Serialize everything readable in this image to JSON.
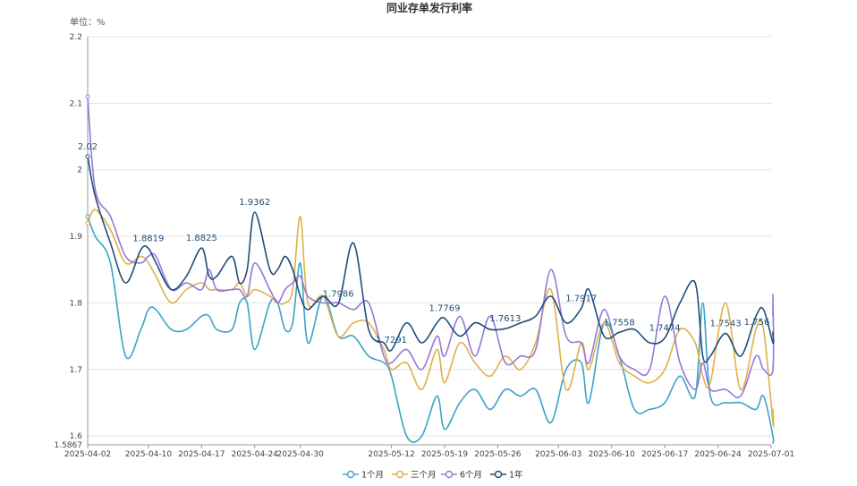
{
  "chart_data": {
    "type": "line",
    "title": "同业存单发行利率",
    "unit_label": "单位：%",
    "ylim": [
      1.5867,
      2.2
    ],
    "y_ticks": [
      1.5867,
      1.6,
      1.7,
      1.8,
      1.9,
      2,
      2.1,
      2.2
    ],
    "y_tick_labels": [
      "1.5867",
      "1.6",
      "1.7",
      "1.8",
      "1.9",
      "2",
      "2.1",
      "2.2"
    ],
    "x_range": [
      "2025-04-02",
      "2025-07-01"
    ],
    "x_ticks": [
      "2025-04-02",
      "2025-04-10",
      "2025-04-17",
      "2025-04-24",
      "2025-04-30",
      "2025-05-12",
      "2025-05-19",
      "2025-05-26",
      "2025-06-03",
      "2025-06-10",
      "2025-06-17",
      "2025-06-24",
      "2025-07-01"
    ],
    "grid": true,
    "legend_position": "bottom-center",
    "series": [
      {
        "name": "1个月",
        "color": "#3ba3c8",
        "values": [
          [
            "2025-04-02",
            1.93
          ],
          [
            "2025-04-03",
            1.9
          ],
          [
            "2025-04-05",
            1.86
          ],
          [
            "2025-04-07",
            1.72
          ],
          [
            "2025-04-09",
            1.76
          ],
          [
            "2025-04-10",
            1.79
          ],
          [
            "2025-04-11",
            1.79
          ],
          [
            "2025-04-13",
            1.76
          ],
          [
            "2025-04-15",
            1.76
          ],
          [
            "2025-04-17",
            1.78
          ],
          [
            "2025-04-18",
            1.78
          ],
          [
            "2025-04-19",
            1.76
          ],
          [
            "2025-04-21",
            1.76
          ],
          [
            "2025-04-22",
            1.8
          ],
          [
            "2025-04-23",
            1.8
          ],
          [
            "2025-04-24",
            1.73
          ],
          [
            "2025-04-26",
            1.8
          ],
          [
            "2025-04-27",
            1.8
          ],
          [
            "2025-04-28",
            1.76
          ],
          [
            "2025-04-29",
            1.77
          ],
          [
            "2025-04-30",
            1.86
          ],
          [
            "2025-05-01",
            1.74
          ],
          [
            "2025-05-03",
            1.81
          ],
          [
            "2025-05-05",
            1.75
          ],
          [
            "2025-05-07",
            1.75
          ],
          [
            "2025-05-09",
            1.72
          ],
          [
            "2025-05-11",
            1.71
          ],
          [
            "2025-05-12",
            1.69
          ],
          [
            "2025-05-14",
            1.6
          ],
          [
            "2025-05-16",
            1.6
          ],
          [
            "2025-05-18",
            1.66
          ],
          [
            "2025-05-19",
            1.61
          ],
          [
            "2025-05-21",
            1.65
          ],
          [
            "2025-05-23",
            1.67
          ],
          [
            "2025-05-25",
            1.64
          ],
          [
            "2025-05-27",
            1.67
          ],
          [
            "2025-05-29",
            1.66
          ],
          [
            "2025-05-31",
            1.67
          ],
          [
            "2025-06-02",
            1.62
          ],
          [
            "2025-06-04",
            1.7
          ],
          [
            "2025-06-06",
            1.71
          ],
          [
            "2025-06-07",
            1.65
          ],
          [
            "2025-06-09",
            1.77
          ],
          [
            "2025-06-11",
            1.72
          ],
          [
            "2025-06-13",
            1.64
          ],
          [
            "2025-06-15",
            1.64
          ],
          [
            "2025-06-17",
            1.65
          ],
          [
            "2025-06-19",
            1.69
          ],
          [
            "2025-06-21",
            1.66
          ],
          [
            "2025-06-22",
            1.8
          ],
          [
            "2025-06-23",
            1.66
          ],
          [
            "2025-06-25",
            1.65
          ],
          [
            "2025-06-27",
            1.65
          ],
          [
            "2025-06-29",
            1.64
          ],
          [
            "2025-06-30",
            1.66
          ],
          [
            "2025-07-02",
            1.6
          ],
          [
            "2025-07-03",
            1.59
          ],
          [
            "2025-07-04",
            1.59
          ]
        ]
      },
      {
        "name": "三个月",
        "color": "#e0b04a",
        "values": [
          [
            "2025-04-02",
            1.92
          ],
          [
            "2025-04-03",
            1.94
          ],
          [
            "2025-04-05",
            1.91
          ],
          [
            "2025-04-07",
            1.86
          ],
          [
            "2025-04-09",
            1.87
          ],
          [
            "2025-04-10",
            1.86
          ],
          [
            "2025-04-11",
            1.84
          ],
          [
            "2025-04-13",
            1.8
          ],
          [
            "2025-04-15",
            1.82
          ],
          [
            "2025-04-17",
            1.83
          ],
          [
            "2025-04-18",
            1.82
          ],
          [
            "2025-04-19",
            1.82
          ],
          [
            "2025-04-21",
            1.82
          ],
          [
            "2025-04-22",
            1.83
          ],
          [
            "2025-04-23",
            1.81
          ],
          [
            "2025-04-24",
            1.82
          ],
          [
            "2025-04-26",
            1.81
          ],
          [
            "2025-04-27",
            1.8
          ],
          [
            "2025-04-28",
            1.8
          ],
          [
            "2025-04-29",
            1.82
          ],
          [
            "2025-04-30",
            1.93
          ],
          [
            "2025-05-01",
            1.8
          ],
          [
            "2025-05-03",
            1.81
          ],
          [
            "2025-05-05",
            1.75
          ],
          [
            "2025-05-07",
            1.77
          ],
          [
            "2025-05-09",
            1.77
          ],
          [
            "2025-05-11",
            1.73
          ],
          [
            "2025-05-12",
            1.7
          ],
          [
            "2025-05-14",
            1.71
          ],
          [
            "2025-05-16",
            1.67
          ],
          [
            "2025-05-18",
            1.73
          ],
          [
            "2025-05-19",
            1.68
          ],
          [
            "2025-05-21",
            1.74
          ],
          [
            "2025-05-23",
            1.71
          ],
          [
            "2025-05-25",
            1.69
          ],
          [
            "2025-05-27",
            1.72
          ],
          [
            "2025-05-29",
            1.7
          ],
          [
            "2025-05-31",
            1.74
          ],
          [
            "2025-06-02",
            1.82
          ],
          [
            "2025-06-04",
            1.67
          ],
          [
            "2025-06-06",
            1.74
          ],
          [
            "2025-06-07",
            1.7
          ],
          [
            "2025-06-09",
            1.77
          ],
          [
            "2025-06-11",
            1.71
          ],
          [
            "2025-06-13",
            1.69
          ],
          [
            "2025-06-15",
            1.68
          ],
          [
            "2025-06-17",
            1.7
          ],
          [
            "2025-06-19",
            1.76
          ],
          [
            "2025-06-21",
            1.74
          ],
          [
            "2025-06-22",
            1.69
          ],
          [
            "2025-06-23",
            1.68
          ],
          [
            "2025-06-25",
            1.8
          ],
          [
            "2025-06-27",
            1.67
          ],
          [
            "2025-06-29",
            1.76
          ],
          [
            "2025-06-30",
            1.76
          ],
          [
            "2025-07-02",
            1.62
          ],
          [
            "2025-07-03",
            1.64
          ],
          [
            "2025-07-04",
            1.63
          ]
        ]
      },
      {
        "name": "6个月",
        "color": "#9678d8",
        "values": [
          [
            "2025-04-02",
            2.11
          ],
          [
            "2025-04-03",
            1.97
          ],
          [
            "2025-04-05",
            1.93
          ],
          [
            "2025-04-07",
            1.87
          ],
          [
            "2025-04-09",
            1.86
          ],
          [
            "2025-04-10",
            1.87
          ],
          [
            "2025-04-11",
            1.87
          ],
          [
            "2025-04-13",
            1.82
          ],
          [
            "2025-04-15",
            1.83
          ],
          [
            "2025-04-17",
            1.82
          ],
          [
            "2025-04-18",
            1.85
          ],
          [
            "2025-04-19",
            1.82
          ],
          [
            "2025-04-21",
            1.82
          ],
          [
            "2025-04-22",
            1.82
          ],
          [
            "2025-04-23",
            1.81
          ],
          [
            "2025-04-24",
            1.86
          ],
          [
            "2025-04-26",
            1.82
          ],
          [
            "2025-04-27",
            1.8
          ],
          [
            "2025-04-28",
            1.82
          ],
          [
            "2025-04-29",
            1.83
          ],
          [
            "2025-04-30",
            1.84
          ],
          [
            "2025-05-01",
            1.81
          ],
          [
            "2025-05-03",
            1.8
          ],
          [
            "2025-05-05",
            1.8
          ],
          [
            "2025-05-07",
            1.79
          ],
          [
            "2025-05-09",
            1.8
          ],
          [
            "2025-05-11",
            1.72
          ],
          [
            "2025-05-12",
            1.71
          ],
          [
            "2025-05-14",
            1.73
          ],
          [
            "2025-05-16",
            1.7
          ],
          [
            "2025-05-18",
            1.75
          ],
          [
            "2025-05-19",
            1.72
          ],
          [
            "2025-05-21",
            1.78
          ],
          [
            "2025-05-23",
            1.72
          ],
          [
            "2025-05-25",
            1.78
          ],
          [
            "2025-05-27",
            1.71
          ],
          [
            "2025-05-29",
            1.72
          ],
          [
            "2025-05-31",
            1.73
          ],
          [
            "2025-06-02",
            1.85
          ],
          [
            "2025-06-04",
            1.75
          ],
          [
            "2025-06-06",
            1.74
          ],
          [
            "2025-06-07",
            1.71
          ],
          [
            "2025-06-09",
            1.79
          ],
          [
            "2025-06-11",
            1.72
          ],
          [
            "2025-06-13",
            1.7
          ],
          [
            "2025-06-15",
            1.7
          ],
          [
            "2025-06-17",
            1.81
          ],
          [
            "2025-06-19",
            1.71
          ],
          [
            "2025-06-21",
            1.67
          ],
          [
            "2025-06-22",
            1.71
          ],
          [
            "2025-06-23",
            1.67
          ],
          [
            "2025-06-25",
            1.67
          ],
          [
            "2025-06-27",
            1.66
          ],
          [
            "2025-06-29",
            1.72
          ],
          [
            "2025-06-30",
            1.7
          ],
          [
            "2025-07-02",
            1.7
          ],
          [
            "2025-07-03",
            1.81
          ],
          [
            "2025-07-04",
            1.78
          ]
        ]
      },
      {
        "name": "1年",
        "color": "#1f4e79",
        "values": [
          [
            "2025-04-02",
            2.02
          ],
          [
            "2025-04-03",
            1.96
          ],
          [
            "2025-04-05",
            1.89
          ],
          [
            "2025-04-07",
            1.83
          ],
          [
            "2025-04-09",
            1.88
          ],
          [
            "2025-04-10",
            1.8819
          ],
          [
            "2025-04-11",
            1.86
          ],
          [
            "2025-04-13",
            1.82
          ],
          [
            "2025-04-15",
            1.84
          ],
          [
            "2025-04-17",
            1.8825
          ],
          [
            "2025-04-18",
            1.84
          ],
          [
            "2025-04-19",
            1.84
          ],
          [
            "2025-04-21",
            1.87
          ],
          [
            "2025-04-22",
            1.83
          ],
          [
            "2025-04-23",
            1.85
          ],
          [
            "2025-04-24",
            1.9362
          ],
          [
            "2025-04-26",
            1.85
          ],
          [
            "2025-04-27",
            1.85
          ],
          [
            "2025-04-28",
            1.87
          ],
          [
            "2025-04-29",
            1.85
          ],
          [
            "2025-04-30",
            1.81
          ],
          [
            "2025-05-01",
            1.79
          ],
          [
            "2025-05-03",
            1.81
          ],
          [
            "2025-05-05",
            1.7986
          ],
          [
            "2025-05-07",
            1.89
          ],
          [
            "2025-05-09",
            1.76
          ],
          [
            "2025-05-11",
            1.74
          ],
          [
            "2025-05-12",
            1.7291
          ],
          [
            "2025-05-14",
            1.77
          ],
          [
            "2025-05-16",
            1.74
          ],
          [
            "2025-05-18",
            1.77
          ],
          [
            "2025-05-19",
            1.7769
          ],
          [
            "2025-05-21",
            1.75
          ],
          [
            "2025-05-23",
            1.77
          ],
          [
            "2025-05-25",
            1.76
          ],
          [
            "2025-05-27",
            1.7613
          ],
          [
            "2025-05-29",
            1.77
          ],
          [
            "2025-05-31",
            1.78
          ],
          [
            "2025-06-02",
            1.81
          ],
          [
            "2025-06-04",
            1.77
          ],
          [
            "2025-06-06",
            1.7917
          ],
          [
            "2025-06-07",
            1.82
          ],
          [
            "2025-06-09",
            1.75
          ],
          [
            "2025-06-11",
            1.7558
          ],
          [
            "2025-06-13",
            1.76
          ],
          [
            "2025-06-15",
            1.74
          ],
          [
            "2025-06-17",
            1.7474
          ],
          [
            "2025-06-19",
            1.8
          ],
          [
            "2025-06-21",
            1.83
          ],
          [
            "2025-06-22",
            1.72
          ],
          [
            "2025-06-23",
            1.72
          ],
          [
            "2025-06-25",
            1.7543
          ],
          [
            "2025-06-27",
            1.72
          ],
          [
            "2025-06-29",
            1.78
          ],
          [
            "2025-06-30",
            1.79
          ],
          [
            "2025-07-02",
            1.74
          ],
          [
            "2025-07-03",
            1.756
          ],
          [
            "2025-07-04",
            1.75
          ]
        ]
      }
    ],
    "annotations": [
      {
        "x": "2025-04-02",
        "y": 2.02,
        "text": "2.02"
      },
      {
        "x": "2025-04-10",
        "y": 1.8819,
        "text": "1.8819"
      },
      {
        "x": "2025-04-17",
        "y": 1.8825,
        "text": "1.8825"
      },
      {
        "x": "2025-04-24",
        "y": 1.9362,
        "text": "1.9362"
      },
      {
        "x": "2025-05-05",
        "y": 1.7986,
        "text": "1.7986"
      },
      {
        "x": "2025-05-12",
        "y": 1.7291,
        "text": "1.7291"
      },
      {
        "x": "2025-05-19",
        "y": 1.7769,
        "text": "1.7769"
      },
      {
        "x": "2025-05-27",
        "y": 1.7613,
        "text": "1.7613"
      },
      {
        "x": "2025-06-06",
        "y": 1.7917,
        "text": "1.7917"
      },
      {
        "x": "2025-06-11",
        "y": 1.7558,
        "text": "1.7558"
      },
      {
        "x": "2025-06-17",
        "y": 1.7474,
        "text": "1.7474"
      },
      {
        "x": "2025-06-25",
        "y": 1.7543,
        "text": "1.7543"
      },
      {
        "x": "2025-07-03",
        "y": 1.756,
        "text": "1.756"
      }
    ]
  }
}
